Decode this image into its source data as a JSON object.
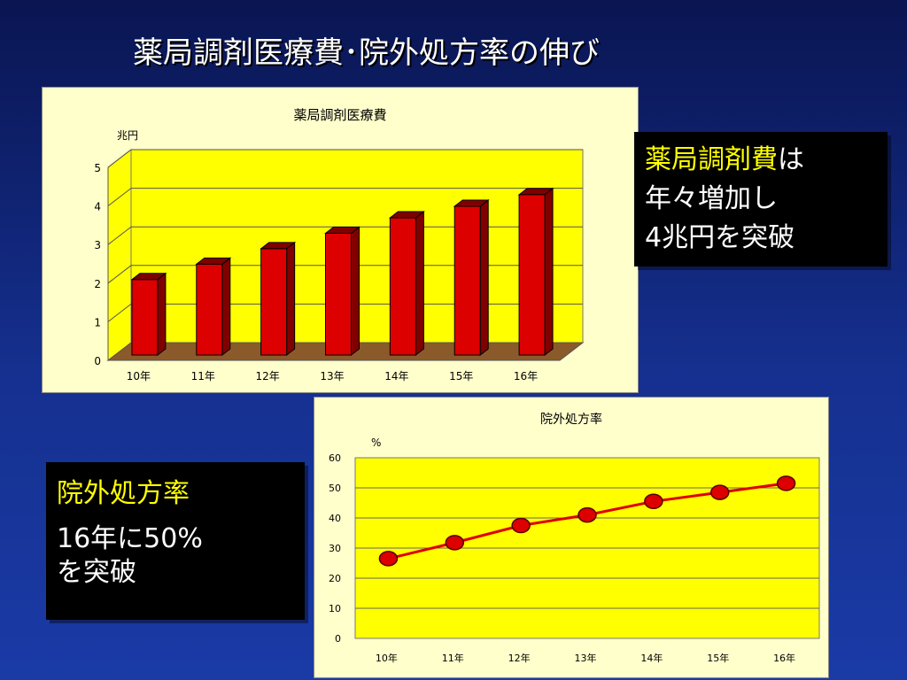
{
  "slide": {
    "title": "薬局調剤医療費･院外処方率の伸び"
  },
  "callouts": {
    "bar": {
      "highlight": "薬局調剤費",
      "rest": "は",
      "line2": "年々増加し",
      "line3": "4兆円を突破"
    },
    "line": {
      "title": "院外処方率",
      "line2": "16年に50%",
      "line3": "を突破"
    }
  },
  "colors": {
    "bar_face": "#dd0000",
    "bar_side": "#800000",
    "wall": "#ffff00",
    "floor": "#8b5a2b",
    "line": "#dd0000",
    "marker": "#dd0000",
    "panel_bg": "#ffffcc",
    "highlight_text": "#ffff00"
  },
  "chart_data": [
    {
      "type": "bar",
      "title": "薬局調剤医療費",
      "ylabel": "兆円",
      "xlabel": "",
      "categories": [
        "10年",
        "11年",
        "12年",
        "13年",
        "14年",
        "15年",
        "16年"
      ],
      "values": [
        2.0,
        2.4,
        2.8,
        3.2,
        3.6,
        3.9,
        4.2
      ],
      "ylim": [
        0,
        5
      ],
      "yticks": [
        0,
        1,
        2,
        3,
        4,
        5
      ],
      "grid": true,
      "legend": "none"
    },
    {
      "type": "line",
      "title": "院外処方率",
      "ylabel": "%",
      "xlabel": "",
      "categories": [
        "10年",
        "11年",
        "12年",
        "13年",
        "14年",
        "15年",
        "16年"
      ],
      "values": [
        26.5,
        31.8,
        37.5,
        41.0,
        45.5,
        48.5,
        51.5
      ],
      "ylim": [
        0,
        60
      ],
      "yticks": [
        0,
        10,
        20,
        30,
        40,
        50,
        60
      ],
      "grid": true,
      "legend": "none"
    }
  ]
}
